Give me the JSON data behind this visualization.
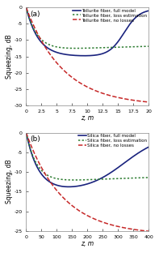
{
  "panel_a": {
    "label": "(a)",
    "xlabel": "z, m",
    "ylabel": "Squeezing, dB",
    "xlim": [
      0,
      20.0
    ],
    "ylim": [
      -30,
      0
    ],
    "xticks": [
      0,
      2.5,
      5.0,
      7.5,
      10.0,
      12.5,
      15.0,
      17.5,
      20.0
    ],
    "yticks": [
      0,
      -5,
      -10,
      -15,
      -20,
      -25,
      -30
    ],
    "lines": [
      {
        "label": "Tellurite fiber, full model",
        "color": "#1a237e",
        "linestyle": "solid",
        "linewidth": 1.2
      },
      {
        "label": "Tellurite fiber, loss estimation",
        "color": "#2e7d32",
        "linestyle": "dotted",
        "linewidth": 1.1
      },
      {
        "label": "Tellurite fiber, no losses",
        "color": "#c62828",
        "linestyle": "dashed",
        "linewidth": 1.1
      }
    ]
  },
  "panel_b": {
    "label": "(b)",
    "xlabel": "z, m",
    "ylabel": "Squeezing, dB",
    "xlim": [
      0,
      400
    ],
    "ylim": [
      -25,
      0
    ],
    "xticks": [
      0,
      50,
      100,
      150,
      200,
      250,
      300,
      350,
      400
    ],
    "yticks": [
      0,
      -5,
      -10,
      -15,
      -20,
      -25
    ],
    "lines": [
      {
        "label": "Silica fiber, full model",
        "color": "#1a237e",
        "linestyle": "solid",
        "linewidth": 1.2
      },
      {
        "label": "Silica fiber, loss estimation",
        "color": "#2e7d32",
        "linestyle": "dotted",
        "linewidth": 1.1
      },
      {
        "label": "Silica fiber, no losses",
        "color": "#c62828",
        "linestyle": "dashed",
        "linewidth": 1.1
      }
    ]
  },
  "figsize": [
    1.97,
    3.12
  ],
  "dpi": 100,
  "bg_color": "#ffffff",
  "legend_fontsize": 4.0,
  "axis_label_fontsize": 5.5,
  "tick_fontsize": 4.5,
  "panel_label_fontsize": 6.5
}
